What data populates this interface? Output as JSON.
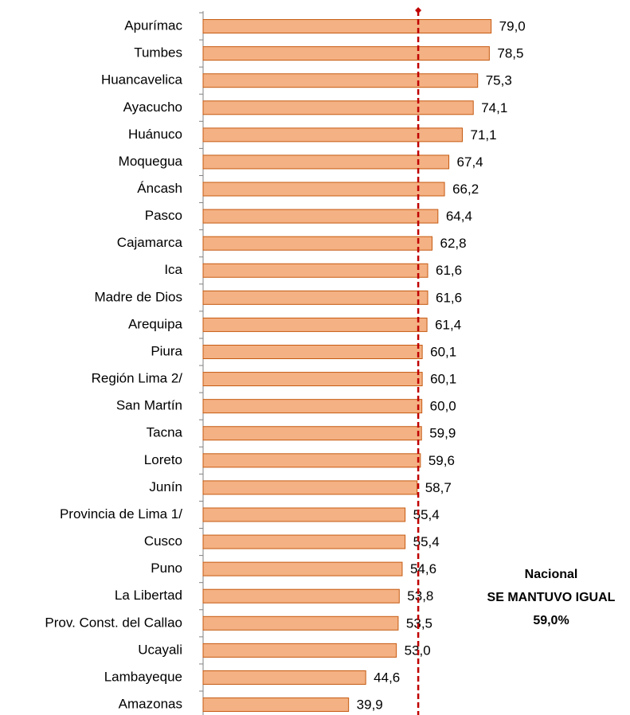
{
  "chart_data": {
    "type": "barh",
    "categories": [
      "Apurímac",
      "Tumbes",
      "Huancavelica",
      "Ayacucho",
      "Huánuco",
      "Moquegua",
      "Áncash",
      "Pasco",
      "Cajamarca",
      "Ica",
      "Madre de Dios",
      "Arequipa",
      "Piura",
      "Región Lima 2/",
      "San Martín",
      "Tacna",
      "Loreto",
      "Junín",
      "Provincia de Lima 1/",
      "Cusco",
      "Puno",
      "La Libertad",
      "Prov. Const. del Callao",
      "Ucayali",
      "Lambayeque",
      "Amazonas"
    ],
    "values": [
      79.0,
      78.5,
      75.3,
      74.1,
      71.1,
      67.4,
      66.2,
      64.4,
      62.8,
      61.6,
      61.6,
      61.4,
      60.1,
      60.1,
      60.0,
      59.9,
      59.6,
      58.7,
      55.4,
      55.4,
      54.6,
      53.8,
      53.5,
      53.0,
      44.6,
      39.9
    ],
    "value_labels": [
      "79,0",
      "78,5",
      "75,3",
      "74,1",
      "71,1",
      "67,4",
      "66,2",
      "64,4",
      "62,8",
      "61,6",
      "61,6",
      "61,4",
      "60,1",
      "60,1",
      "60,0",
      "59,9",
      "59,6",
      "58,7",
      "55,4",
      "55,4",
      "54,6",
      "53,8",
      "53,5",
      "53,0",
      "44,6",
      "39,9"
    ],
    "color": "#f4b183",
    "edge_color": "#c55a11",
    "xlim": [
      0,
      90
    ],
    "reference_line": {
      "value": 59.0,
      "color": "#c00000",
      "annotation": [
        "Nacional",
        "SE MANTUVO IGUAL",
        "59,0%"
      ]
    }
  }
}
